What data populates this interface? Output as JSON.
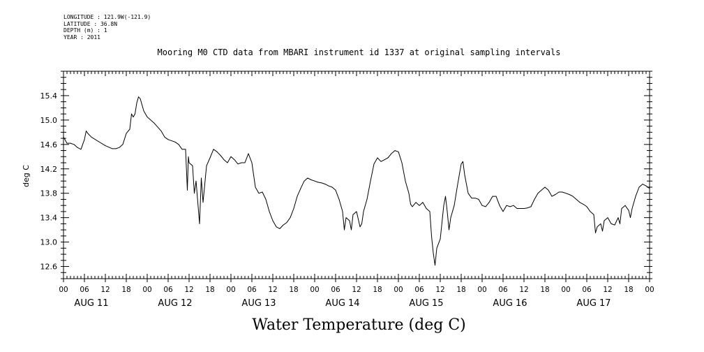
{
  "header": {
    "longitude": "LONGITUDE : 121.9W(-121.9)",
    "latitude": "LATITUDE : 36.8N",
    "depth": "DEPTH (m) : 1",
    "year": "YEAR : 2011"
  },
  "chart_data": {
    "type": "line",
    "title": "Mooring M0 CTD data from MBARI instrument id 1337 at original sampling intervals",
    "xlabel": "Water Temperature (deg C)",
    "ylabel": "deg C",
    "ylim": [
      12.4,
      15.8
    ],
    "xlim_hours": [
      0,
      168
    ],
    "yticks": [
      "15.4",
      "15.0",
      "14.6",
      "14.2",
      "13.8",
      "13.4",
      "13.0",
      "12.6"
    ],
    "xtick_hour_labels": [
      "00",
      "06",
      "12",
      "18",
      "00",
      "06",
      "12",
      "18",
      "00",
      "06",
      "12",
      "18",
      "00",
      "06",
      "12",
      "18",
      "00",
      "06",
      "12",
      "18",
      "00",
      "06",
      "12",
      "18",
      "00",
      "06",
      "12",
      "18",
      "00"
    ],
    "day_labels": [
      "AUG 11",
      "AUG 12",
      "AUG 13",
      "AUG 14",
      "AUG 15",
      "AUG 16",
      "AUG 17"
    ],
    "grid": false,
    "series": [
      {
        "color": "#000000",
        "points": [
          [
            0,
            14.72
          ],
          [
            1,
            14.62
          ],
          [
            2,
            14.62
          ],
          [
            3,
            14.6
          ],
          [
            4,
            14.55
          ],
          [
            5,
            14.52
          ],
          [
            6,
            14.68
          ],
          [
            6.5,
            14.82
          ],
          [
            7,
            14.78
          ],
          [
            8,
            14.72
          ],
          [
            10,
            14.65
          ],
          [
            12,
            14.58
          ],
          [
            14,
            14.53
          ],
          [
            15,
            14.53
          ],
          [
            16,
            14.55
          ],
          [
            17,
            14.6
          ],
          [
            18,
            14.78
          ],
          [
            19,
            14.85
          ],
          [
            19.5,
            15.1
          ],
          [
            20,
            15.05
          ],
          [
            20.5,
            15.1
          ],
          [
            21,
            15.28
          ],
          [
            21.5,
            15.38
          ],
          [
            22,
            15.35
          ],
          [
            23,
            15.15
          ],
          [
            24,
            15.05
          ],
          [
            26,
            14.95
          ],
          [
            28,
            14.82
          ],
          [
            29,
            14.72
          ],
          [
            30,
            14.68
          ],
          [
            32,
            14.64
          ],
          [
            33,
            14.6
          ],
          [
            34,
            14.52
          ],
          [
            35,
            14.52
          ],
          [
            35.5,
            13.85
          ],
          [
            35.8,
            14.4
          ],
          [
            36,
            14.3
          ],
          [
            37,
            14.25
          ],
          [
            37.5,
            13.8
          ],
          [
            38,
            14.0
          ],
          [
            39,
            13.3
          ],
          [
            39.5,
            14.05
          ],
          [
            40,
            13.65
          ],
          [
            41,
            14.25
          ],
          [
            42,
            14.38
          ],
          [
            43,
            14.52
          ],
          [
            44,
            14.48
          ],
          [
            45,
            14.42
          ],
          [
            46,
            14.35
          ],
          [
            47,
            14.3
          ],
          [
            48,
            14.4
          ],
          [
            49,
            14.35
          ],
          [
            50,
            14.28
          ],
          [
            51,
            14.3
          ],
          [
            52,
            14.3
          ],
          [
            53,
            14.45
          ],
          [
            54,
            14.3
          ],
          [
            55,
            13.9
          ],
          [
            56,
            13.8
          ],
          [
            57,
            13.82
          ],
          [
            58,
            13.7
          ],
          [
            59,
            13.5
          ],
          [
            60,
            13.35
          ],
          [
            61,
            13.25
          ],
          [
            62,
            13.22
          ],
          [
            63,
            13.28
          ],
          [
            64,
            13.32
          ],
          [
            65,
            13.4
          ],
          [
            66,
            13.55
          ],
          [
            67,
            13.75
          ],
          [
            68,
            13.88
          ],
          [
            69,
            14.0
          ],
          [
            70,
            14.05
          ],
          [
            71,
            14.02
          ],
          [
            72,
            14.0
          ],
          [
            73,
            13.98
          ],
          [
            74,
            13.97
          ],
          [
            75,
            13.95
          ],
          [
            76,
            13.92
          ],
          [
            77,
            13.9
          ],
          [
            78,
            13.85
          ],
          [
            79,
            13.7
          ],
          [
            80,
            13.5
          ],
          [
            80.5,
            13.2
          ],
          [
            81,
            13.4
          ],
          [
            82,
            13.35
          ],
          [
            82.5,
            13.2
          ],
          [
            83,
            13.45
          ],
          [
            84,
            13.5
          ],
          [
            85,
            13.25
          ],
          [
            85.5,
            13.3
          ],
          [
            86,
            13.5
          ],
          [
            87,
            13.7
          ],
          [
            88,
            14.0
          ],
          [
            89,
            14.28
          ],
          [
            90,
            14.38
          ],
          [
            91,
            14.32
          ],
          [
            92,
            14.35
          ],
          [
            93,
            14.38
          ],
          [
            94,
            14.45
          ],
          [
            95,
            14.5
          ],
          [
            96,
            14.48
          ],
          [
            97,
            14.3
          ],
          [
            98,
            14.0
          ],
          [
            99,
            13.8
          ],
          [
            99.5,
            13.62
          ],
          [
            100,
            13.58
          ],
          [
            101,
            13.65
          ],
          [
            102,
            13.6
          ],
          [
            103,
            13.65
          ],
          [
            104,
            13.55
          ],
          [
            105,
            13.5
          ],
          [
            105.5,
            13.1
          ],
          [
            106,
            12.82
          ],
          [
            106.5,
            12.62
          ],
          [
            107,
            12.9
          ],
          [
            108,
            13.05
          ],
          [
            109,
            13.6
          ],
          [
            109.5,
            13.75
          ],
          [
            110,
            13.5
          ],
          [
            110.5,
            13.2
          ],
          [
            111,
            13.4
          ],
          [
            112,
            13.6
          ],
          [
            113,
            13.95
          ],
          [
            114,
            14.28
          ],
          [
            114.5,
            14.32
          ],
          [
            115,
            14.1
          ],
          [
            116,
            13.8
          ],
          [
            117,
            13.72
          ],
          [
            118,
            13.72
          ],
          [
            119,
            13.7
          ],
          [
            120,
            13.6
          ],
          [
            121,
            13.58
          ],
          [
            122,
            13.65
          ],
          [
            123,
            13.75
          ],
          [
            124,
            13.75
          ],
          [
            125,
            13.6
          ],
          [
            126,
            13.5
          ],
          [
            127,
            13.6
          ],
          [
            128,
            13.58
          ],
          [
            129,
            13.6
          ],
          [
            130,
            13.55
          ],
          [
            131,
            13.55
          ],
          [
            132,
            13.55
          ],
          [
            133,
            13.56
          ],
          [
            134,
            13.58
          ],
          [
            135,
            13.7
          ],
          [
            136,
            13.8
          ],
          [
            137,
            13.85
          ],
          [
            138,
            13.9
          ],
          [
            139,
            13.85
          ],
          [
            140,
            13.75
          ],
          [
            141,
            13.78
          ],
          [
            142,
            13.82
          ],
          [
            143,
            13.82
          ],
          [
            144,
            13.8
          ],
          [
            145,
            13.78
          ],
          [
            146,
            13.75
          ],
          [
            147,
            13.7
          ],
          [
            148,
            13.65
          ],
          [
            149,
            13.62
          ],
          [
            150,
            13.58
          ],
          [
            151,
            13.5
          ],
          [
            152,
            13.45
          ],
          [
            152.5,
            13.15
          ],
          [
            153,
            13.25
          ],
          [
            154,
            13.3
          ],
          [
            154.5,
            13.18
          ],
          [
            155,
            13.35
          ],
          [
            156,
            13.4
          ],
          [
            157,
            13.3
          ],
          [
            158,
            13.28
          ],
          [
            159,
            13.4
          ],
          [
            159.5,
            13.3
          ],
          [
            160,
            13.55
          ],
          [
            161,
            13.6
          ],
          [
            162,
            13.52
          ],
          [
            162.5,
            13.4
          ],
          [
            163,
            13.55
          ],
          [
            164,
            13.75
          ],
          [
            165,
            13.9
          ],
          [
            166,
            13.95
          ],
          [
            167,
            13.92
          ],
          [
            168,
            13.88
          ]
        ]
      }
    ]
  }
}
